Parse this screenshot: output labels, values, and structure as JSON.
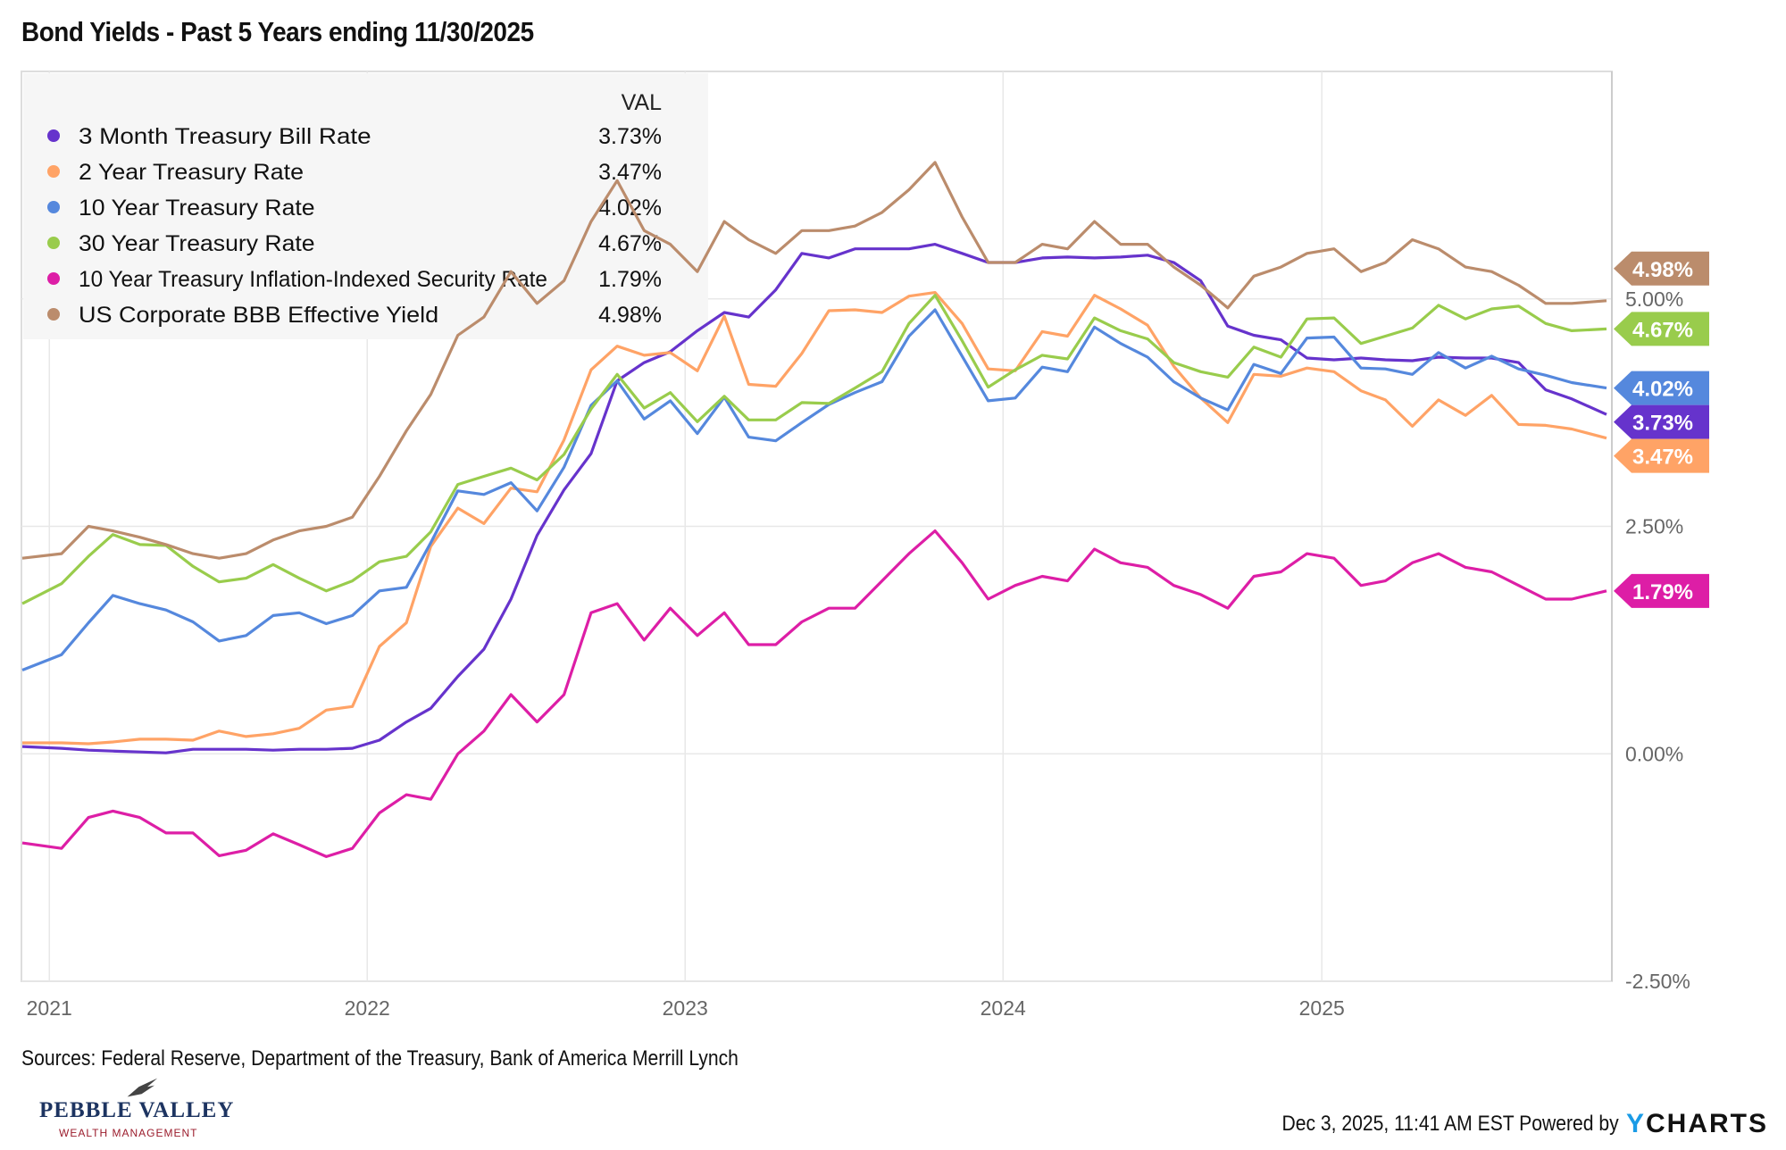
{
  "title": "Bond Yields - Past 5 Years ending 11/30/2025",
  "sources": "Sources: Federal Reserve, Department of the Treasury, Bank of America Merrill Lynch",
  "footer": {
    "timestamp": "Dec 3, 2025, 11:41 AM EST",
    "powered_by": "Powered by",
    "brand_y": "Y",
    "brand_rest": "CHARTS"
  },
  "logo": {
    "name": "PEBBLE VALLEY",
    "subtitle": "WEALTH MANAGEMENT"
  },
  "chart_data": {
    "type": "line",
    "title": "Bond Yields - Past 5 Years ending 11/30/2025",
    "legend": {
      "header": "VAL",
      "placement": "top-left"
    },
    "ylim": [
      -2.5,
      7.5
    ],
    "yticks": [
      5.0,
      2.5,
      0.0,
      -2.5
    ],
    "ytick_labels": [
      "5.00%",
      "2.50%",
      "0.00%",
      "-2.50%"
    ],
    "xlim": [
      "2020-11-30",
      "2025-11-30"
    ],
    "xtick_labels": [
      "2021",
      "2022",
      "2023",
      "2024",
      "2025"
    ],
    "grid": true,
    "x": [
      "2020-12",
      "2021-01",
      "2021-02",
      "2021-03",
      "2021-04",
      "2021-05",
      "2021-06",
      "2021-07",
      "2021-08",
      "2021-09",
      "2021-10",
      "2021-11",
      "2021-12",
      "2022-01",
      "2022-02",
      "2022-03",
      "2022-04",
      "2022-05",
      "2022-06",
      "2022-07",
      "2022-08",
      "2022-09",
      "2022-10",
      "2022-11",
      "2022-12",
      "2023-01",
      "2023-02",
      "2023-03",
      "2023-04",
      "2023-05",
      "2023-06",
      "2023-07",
      "2023-08",
      "2023-09",
      "2023-10",
      "2023-11",
      "2023-12",
      "2024-01",
      "2024-02",
      "2024-03",
      "2024-04",
      "2024-05",
      "2024-06",
      "2024-07",
      "2024-08",
      "2024-09",
      "2024-10",
      "2024-11",
      "2024-12",
      "2025-01",
      "2025-02",
      "2025-03",
      "2025-04",
      "2025-05",
      "2025-06",
      "2025-07",
      "2025-08",
      "2025-09",
      "2025-10",
      "2025-11"
    ],
    "series": [
      {
        "name": "3 Month Treasury Bill Rate",
        "last": "3.73%",
        "color": "#6633cc",
        "values": [
          0.08,
          0.06,
          0.04,
          0.03,
          0.02,
          0.01,
          0.05,
          0.05,
          0.05,
          0.04,
          0.05,
          0.05,
          0.06,
          0.15,
          0.35,
          0.5,
          0.85,
          1.15,
          1.7,
          2.4,
          2.9,
          3.3,
          4.1,
          4.3,
          4.42,
          4.65,
          4.85,
          4.8,
          5.1,
          5.5,
          5.45,
          5.55,
          5.55,
          5.55,
          5.6,
          5.5,
          5.4,
          5.4,
          5.45,
          5.46,
          5.45,
          5.46,
          5.48,
          5.4,
          5.2,
          4.7,
          4.6,
          4.55,
          4.35,
          4.33,
          4.35,
          4.33,
          4.32,
          4.36,
          4.35,
          4.35,
          4.3,
          4.0,
          3.9,
          3.73
        ]
      },
      {
        "name": "2 Year Treasury Rate",
        "last": "3.47%",
        "color": "#ffa366",
        "values": [
          0.12,
          0.12,
          0.11,
          0.13,
          0.16,
          0.16,
          0.15,
          0.25,
          0.19,
          0.22,
          0.28,
          0.48,
          0.52,
          1.18,
          1.44,
          2.28,
          2.7,
          2.53,
          2.92,
          2.88,
          3.45,
          4.22,
          4.48,
          4.38,
          4.41,
          4.21,
          4.81,
          4.06,
          4.04,
          4.4,
          4.87,
          4.88,
          4.85,
          5.03,
          5.07,
          4.73,
          4.23,
          4.21,
          4.64,
          4.59,
          5.04,
          4.89,
          4.71,
          4.26,
          3.91,
          3.64,
          4.17,
          4.15,
          4.24,
          4.2,
          3.99,
          3.89,
          3.6,
          3.89,
          3.72,
          3.94,
          3.62,
          3.61,
          3.57,
          3.47
        ]
      },
      {
        "name": "10 Year Treasury Rate",
        "last": "4.02%",
        "color": "#5588dd",
        "values": [
          0.92,
          1.09,
          1.44,
          1.74,
          1.65,
          1.58,
          1.45,
          1.24,
          1.3,
          1.52,
          1.55,
          1.43,
          1.52,
          1.79,
          1.83,
          2.32,
          2.89,
          2.85,
          2.98,
          2.67,
          3.15,
          3.83,
          4.1,
          3.68,
          3.88,
          3.52,
          3.92,
          3.48,
          3.44,
          3.64,
          3.84,
          3.97,
          4.09,
          4.59,
          4.88,
          4.37,
          3.88,
          3.91,
          4.25,
          4.2,
          4.69,
          4.51,
          4.36,
          4.09,
          3.91,
          3.78,
          4.28,
          4.18,
          4.57,
          4.58,
          4.24,
          4.23,
          4.17,
          4.41,
          4.24,
          4.37,
          4.23,
          4.16,
          4.08,
          4.02
        ]
      },
      {
        "name": "30 Year Treasury Rate",
        "last": "4.67%",
        "color": "#99cc4c",
        "values": [
          1.65,
          1.87,
          2.17,
          2.41,
          2.3,
          2.29,
          2.06,
          1.89,
          1.93,
          2.08,
          1.93,
          1.79,
          1.9,
          2.11,
          2.17,
          2.44,
          2.96,
          3.05,
          3.14,
          3.01,
          3.29,
          3.79,
          4.17,
          3.8,
          3.97,
          3.65,
          3.93,
          3.67,
          3.67,
          3.86,
          3.85,
          4.02,
          4.2,
          4.73,
          5.04,
          4.54,
          4.03,
          4.22,
          4.38,
          4.34,
          4.79,
          4.65,
          4.56,
          4.3,
          4.2,
          4.14,
          4.47,
          4.36,
          4.78,
          4.79,
          4.51,
          4.59,
          4.68,
          4.93,
          4.78,
          4.89,
          4.92,
          4.73,
          4.65,
          4.67
        ]
      },
      {
        "name": "10 Year Treasury Inflation-Indexed Security Rate",
        "last": "1.79%",
        "color": "#dd1ea6",
        "values": [
          -0.98,
          -1.04,
          -0.7,
          -0.63,
          -0.7,
          -0.87,
          -0.87,
          -1.12,
          -1.06,
          -0.88,
          -1.0,
          -1.13,
          -1.04,
          -0.65,
          -0.45,
          -0.5,
          0.0,
          0.25,
          0.65,
          0.35,
          0.65,
          1.55,
          1.65,
          1.25,
          1.6,
          1.3,
          1.55,
          1.2,
          1.2,
          1.45,
          1.6,
          1.6,
          1.9,
          2.2,
          2.45,
          2.1,
          1.7,
          1.85,
          1.95,
          1.9,
          2.25,
          2.1,
          2.05,
          1.85,
          1.75,
          1.6,
          1.95,
          2.0,
          2.2,
          2.15,
          1.85,
          1.9,
          2.1,
          2.2,
          2.05,
          2.0,
          1.85,
          1.7,
          1.7,
          1.79
        ]
      },
      {
        "name": "US Corporate BBB Effective Yield",
        "last": "4.98%",
        "color": "#bb8c6c",
        "values": [
          2.15,
          2.2,
          2.5,
          2.45,
          2.38,
          2.3,
          2.2,
          2.15,
          2.2,
          2.35,
          2.45,
          2.5,
          2.6,
          3.05,
          3.55,
          3.95,
          4.6,
          4.8,
          5.3,
          4.95,
          5.2,
          5.85,
          6.3,
          5.75,
          5.6,
          5.3,
          5.85,
          5.65,
          5.5,
          5.75,
          5.75,
          5.8,
          5.95,
          6.2,
          6.5,
          5.9,
          5.4,
          5.4,
          5.6,
          5.55,
          5.85,
          5.6,
          5.6,
          5.35,
          5.15,
          4.9,
          5.25,
          5.35,
          5.5,
          5.55,
          5.3,
          5.4,
          5.65,
          5.55,
          5.35,
          5.3,
          5.15,
          4.95,
          4.95,
          4.98
        ]
      }
    ]
  }
}
